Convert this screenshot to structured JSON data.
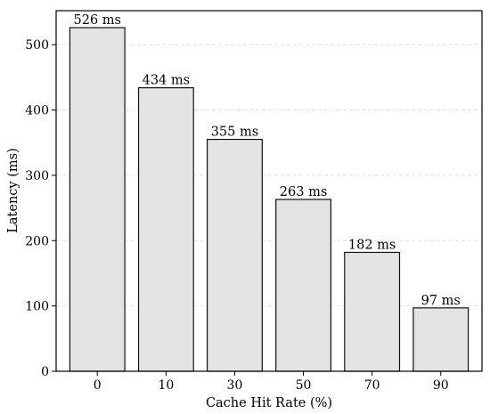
{
  "chart_data": {
    "type": "bar",
    "categories": [
      "0",
      "10",
      "30",
      "50",
      "70",
      "90"
    ],
    "values": [
      526,
      434,
      355,
      263,
      182,
      97
    ],
    "data_labels": [
      "526 ms",
      "434 ms",
      "355 ms",
      "263 ms",
      "182 ms",
      "97 ms"
    ],
    "xlabel": "Cache Hit Rate (%)",
    "ylabel": "Latency (ms)",
    "ylim": [
      0,
      552
    ],
    "yticks": [
      0,
      100,
      200,
      300,
      400,
      500
    ],
    "grid": true,
    "bar_color": "#e4e4e4",
    "edge_color": "#111111"
  }
}
